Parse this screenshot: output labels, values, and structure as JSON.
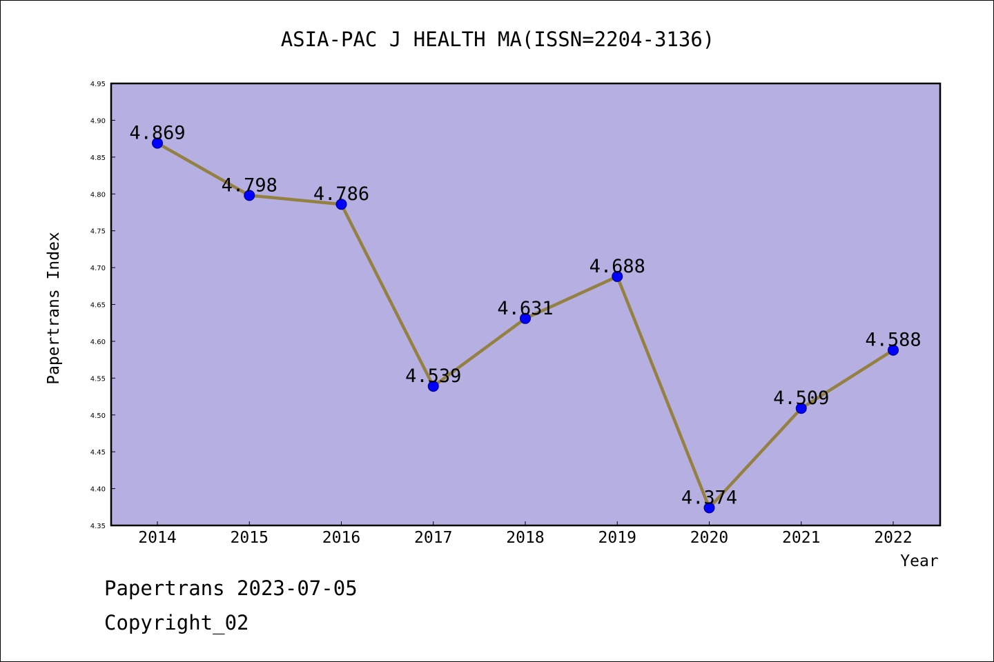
{
  "chart_data": {
    "type": "line",
    "title": "ASIA-PAC J HEALTH MA(ISSN=2204-3136)",
    "xlabel": "Year",
    "ylabel": "Papertrans Index",
    "x": [
      "2014",
      "2015",
      "2016",
      "2017",
      "2018",
      "2019",
      "2020",
      "2021",
      "2022"
    ],
    "series": [
      {
        "values": [
          4.869,
          4.798,
          4.786,
          4.539,
          4.631,
          4.688,
          4.374,
          4.509,
          4.588
        ],
        "labels": [
          "4.869",
          "4.798",
          "4.786",
          "4.539",
          "4.631",
          "4.688",
          "4.374",
          "4.509",
          "4.588"
        ]
      }
    ],
    "ylim": [
      4.35,
      4.95
    ],
    "yticks": [
      "4.35",
      "4.40",
      "4.45",
      "4.50",
      "4.55",
      "4.60",
      "4.65",
      "4.70",
      "4.75",
      "4.80",
      "4.85",
      "4.90",
      "4.95"
    ],
    "grid": false,
    "legend": "none",
    "colors": {
      "plot_background": "#b5afe2",
      "line": "#948040",
      "marker": "#0000ff",
      "marker_edge": "#00007a",
      "axis": "#000000"
    }
  },
  "footer": {
    "line1": "Papertrans 2023-07-05",
    "line2": "Copyright_02"
  }
}
